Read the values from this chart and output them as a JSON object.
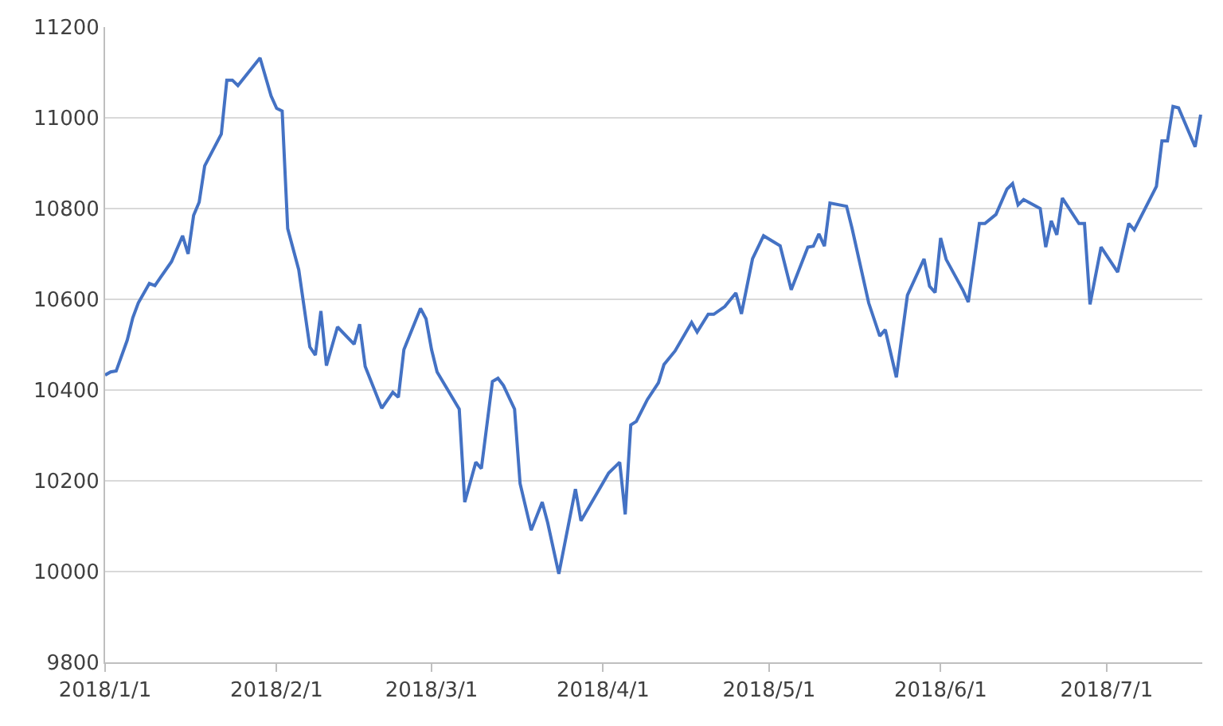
{
  "chart_data": {
    "type": "line",
    "x": [
      "2018-01-01",
      "2018-01-02",
      "2018-01-03",
      "2018-01-05",
      "2018-01-06",
      "2018-01-07",
      "2018-01-09",
      "2018-01-10",
      "2018-01-11",
      "2018-01-13",
      "2018-01-15",
      "2018-01-16",
      "2018-01-17",
      "2018-01-18",
      "2018-01-19",
      "2018-01-22",
      "2018-01-23",
      "2018-01-24",
      "2018-01-25",
      "2018-01-29",
      "2018-01-31",
      "2018-02-01",
      "2018-02-02",
      "2018-02-03",
      "2018-02-05",
      "2018-02-07",
      "2018-02-08",
      "2018-02-09",
      "2018-02-10",
      "2018-02-12",
      "2018-02-15",
      "2018-02-16",
      "2018-02-17",
      "2018-02-20",
      "2018-02-22",
      "2018-02-23",
      "2018-02-24",
      "2018-02-27",
      "2018-02-28",
      "2018-03-01",
      "2018-03-02",
      "2018-03-06",
      "2018-03-07",
      "2018-03-09",
      "2018-03-10",
      "2018-03-12",
      "2018-03-13",
      "2018-03-14",
      "2018-03-16",
      "2018-03-17",
      "2018-03-19",
      "2018-03-21",
      "2018-03-22",
      "2018-03-24",
      "2018-03-27",
      "2018-03-28",
      "2018-04-02",
      "2018-04-04",
      "2018-04-05",
      "2018-04-06",
      "2018-04-07",
      "2018-04-09",
      "2018-04-11",
      "2018-04-12",
      "2018-04-14",
      "2018-04-17",
      "2018-04-18",
      "2018-04-20",
      "2018-04-21",
      "2018-04-23",
      "2018-04-25",
      "2018-04-26",
      "2018-04-28",
      "2018-04-30",
      "2018-05-03",
      "2018-05-05",
      "2018-05-08",
      "2018-05-09",
      "2018-05-10",
      "2018-05-11",
      "2018-05-12",
      "2018-05-15",
      "2018-05-16",
      "2018-05-19",
      "2018-05-21",
      "2018-05-22",
      "2018-05-24",
      "2018-05-26",
      "2018-05-29",
      "2018-05-30",
      "2018-05-31",
      "2018-06-01",
      "2018-06-02",
      "2018-06-05",
      "2018-06-06",
      "2018-06-08",
      "2018-06-09",
      "2018-06-11",
      "2018-06-13",
      "2018-06-14",
      "2018-06-15",
      "2018-06-16",
      "2018-06-19",
      "2018-06-20",
      "2018-06-21",
      "2018-06-22",
      "2018-06-23",
      "2018-06-26",
      "2018-06-27",
      "2018-06-28",
      "2018-06-30",
      "2018-07-03",
      "2018-07-05",
      "2018-07-06",
      "2018-07-10",
      "2018-07-11",
      "2018-07-12",
      "2018-07-13",
      "2018-07-14",
      "2018-07-17",
      "2018-07-18"
    ],
    "series": [
      {
        "color": "#4472c4",
        "values": [
          10433,
          10440,
          10442,
          10510,
          10559,
          10592,
          10635,
          10630,
          10648,
          10683,
          10740,
          10700,
          10785,
          10814,
          10894,
          10964,
          11083,
          11083,
          11071,
          11132,
          11048,
          11021,
          11015,
          10756,
          10665,
          10495,
          10477,
          10574,
          10454,
          10539,
          10501,
          10545,
          10452,
          10360,
          10395,
          10384,
          10489,
          10580,
          10557,
          10489,
          10440,
          10358,
          10153,
          10241,
          10227,
          10419,
          10426,
          10410,
          10358,
          10194,
          10091,
          10153,
          10107,
          9995,
          10182,
          10112,
          10217,
          10241,
          10126,
          10323,
          10331,
          10379,
          10416,
          10456,
          10486,
          10549,
          10528,
          10567,
          10567,
          10584,
          10614,
          10568,
          10689,
          10740,
          10718,
          10621,
          10715,
          10717,
          10744,
          10717,
          10812,
          10805,
          10756,
          10592,
          10519,
          10533,
          10428,
          10609,
          10689,
          10629,
          10615,
          10735,
          10688,
          10621,
          10594,
          10767,
          10767,
          10787,
          10843,
          10855,
          10808,
          10820,
          10800,
          10715,
          10773,
          10742,
          10823,
          10767,
          10767,
          10589,
          10715,
          10660,
          10767,
          10753,
          10849,
          10949,
          10949,
          11025,
          11022,
          10936,
          11007
        ]
      }
    ],
    "xlim": [
      "2018-01-01",
      "2018-07-18T07:00"
    ],
    "xticks": [
      {
        "value": "2018-01-01",
        "label": "2018/1/1"
      },
      {
        "value": "2018-02-01",
        "label": "2018/2/1"
      },
      {
        "value": "2018-03-01",
        "label": "2018/3/1"
      },
      {
        "value": "2018-04-01",
        "label": "2018/4/1"
      },
      {
        "value": "2018-05-01",
        "label": "2018/5/1"
      },
      {
        "value": "2018-06-01",
        "label": "2018/6/1"
      },
      {
        "value": "2018-07-01",
        "label": "2018/7/1"
      }
    ],
    "ylim": [
      9800,
      11200
    ],
    "yticks": [
      9800,
      10000,
      10200,
      10400,
      10600,
      10800,
      11000,
      11200
    ],
    "grid": "y",
    "legend": false,
    "marker": "none",
    "line_style": "solid"
  }
}
